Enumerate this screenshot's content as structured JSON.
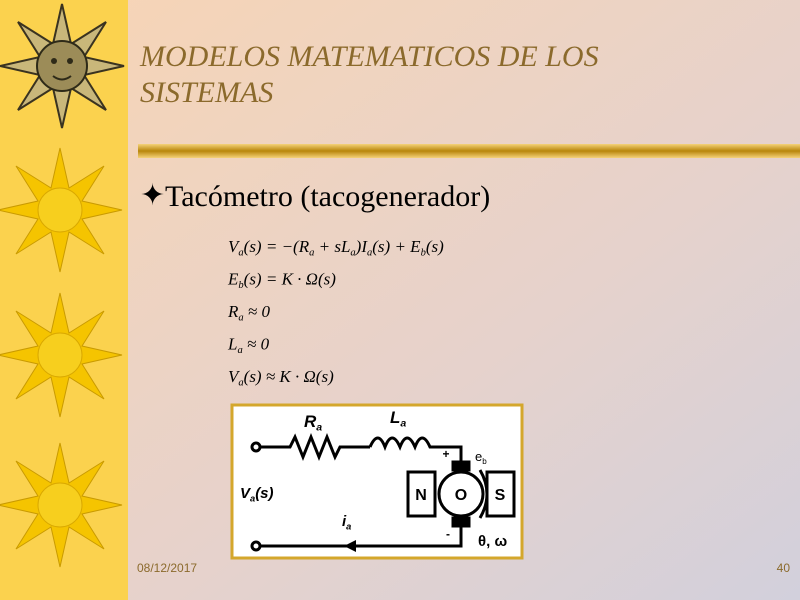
{
  "header": {
    "title": "MODELOS MATEMATICOS DE LOS SISTEMAS"
  },
  "bullet": "Tacómetro (tacogenerador)",
  "equations": [
    [
      "V",
      "a",
      "(s) = −(R",
      "a",
      " + sL",
      "a",
      ")I",
      "a",
      "(s) + E",
      "b",
      "(s)"
    ],
    [
      "E",
      "b",
      "(s) = K · Ω(s)"
    ],
    [
      "R",
      "a",
      " ≈ 0"
    ],
    [
      "L",
      "a",
      " ≈ 0"
    ],
    [
      "V",
      "a",
      "(s) ≈ K · Ω(s)"
    ]
  ],
  "circuit": {
    "resistor": [
      "R",
      "a"
    ],
    "inductor": [
      "L",
      "a"
    ],
    "emf": [
      "e",
      "b"
    ],
    "voltage": [
      "V",
      "a",
      "(s)"
    ],
    "current": [
      "i",
      "a"
    ],
    "plus": "+",
    "minus": "-",
    "north": "N",
    "rotor": "O",
    "south": "S",
    "rotation": "θ, ω"
  },
  "footer": {
    "date": "08/12/2017",
    "page": "40"
  }
}
